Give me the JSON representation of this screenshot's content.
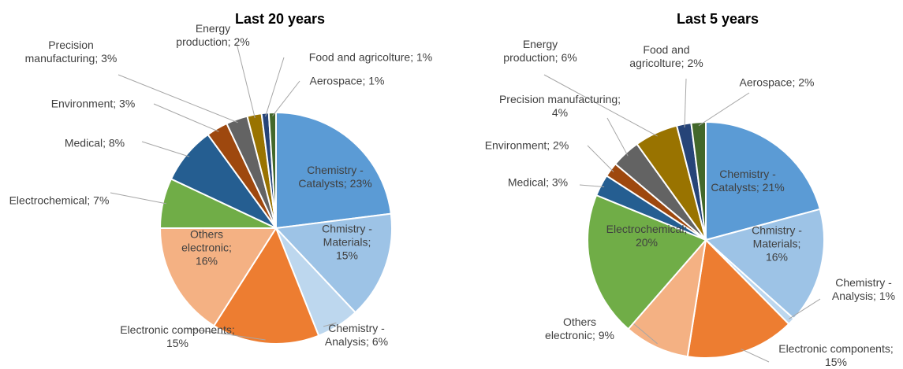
{
  "chart_data": [
    {
      "type": "pie",
      "title": "Last 20 years",
      "values": [
        23,
        15,
        6,
        15,
        16,
        7,
        8,
        3,
        3,
        2,
        1,
        1
      ],
      "value_labels": [
        "Chemistry - Catalysts; 23%",
        "Chmistry - Materials; 15%",
        "Chemistry - Analysis; 6%",
        "Electronic components; 15%",
        "Others electronic; 16%",
        "Electrochemical; 7%",
        "Medical; 8%",
        "Environment; 3%",
        "Precision manufacturing; 3%",
        "Energy production; 2%",
        "Food and agricolture; 1%",
        "Aerospace; 1%"
      ],
      "colors": [
        "#5b9bd5",
        "#9dc3e6",
        "#bdd7ee",
        "#ed7d31",
        "#f4b183",
        "#70ad47",
        "#255e91",
        "#9e480e",
        "#636363",
        "#997300",
        "#264478",
        "#43682b"
      ]
    },
    {
      "type": "pie",
      "title": "Last 5 years",
      "values": [
        21,
        16,
        1,
        15,
        9,
        20,
        3,
        2,
        4,
        6,
        2,
        2
      ],
      "value_labels": [
        "Chemistry - Catalysts; 21%",
        "Chmistry - Materials; 16%",
        "Chemistry - Analysis; 1%",
        "Electronic components; 15%",
        "Others electronic; 9%",
        "Electrochemical; 20%",
        "Medical; 3%",
        "Environment; 2%",
        "Precision manufacturing; 4%",
        "Energy production; 6%",
        "Food and agricolture; 2%",
        "Aerospace; 2%"
      ],
      "colors": [
        "#5b9bd5",
        "#9dc3e6",
        "#bdd7ee",
        "#ed7d31",
        "#f4b183",
        "#70ad47",
        "#255e91",
        "#9e480e",
        "#636363",
        "#997300",
        "#264478",
        "#43682b"
      ]
    }
  ]
}
